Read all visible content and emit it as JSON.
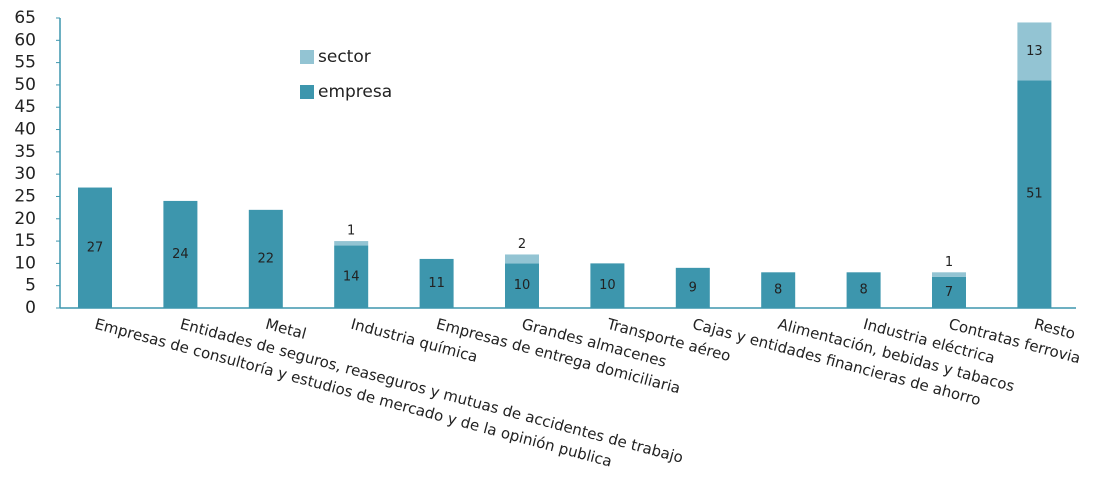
{
  "chart_data": {
    "type": "stacked-bar",
    "categories": [
      "Empresas de consultoría y estudios de mercado y de la opinión publica",
      "Entidades de seguros, reaseguros y mutuas de accidentes de trabajo",
      "Metal",
      "Industria química",
      "Empresas de entrega domiciliaria",
      "Grandes almacenes",
      "Transporte aéreo",
      "Cajas y entidades financieras de ahorro",
      "Alimentación, bebidas y tabacos",
      "Industria eléctrica",
      "Contratas ferrovia",
      "Resto"
    ],
    "series": [
      {
        "name": "empresa",
        "color": "#3d96ad",
        "values": [
          27,
          24,
          22,
          14,
          11,
          10,
          10,
          9,
          8,
          8,
          7,
          51
        ]
      },
      {
        "name": "sector",
        "color": "#93c4d3",
        "values": [
          null,
          null,
          null,
          1,
          null,
          2,
          null,
          null,
          null,
          null,
          1,
          13
        ]
      }
    ],
    "ylim": [
      0,
      65
    ],
    "yticks": [
      0,
      5,
      10,
      15,
      20,
      25,
      30,
      35,
      40,
      45,
      50,
      55,
      60,
      65
    ],
    "legend": "top-left"
  }
}
